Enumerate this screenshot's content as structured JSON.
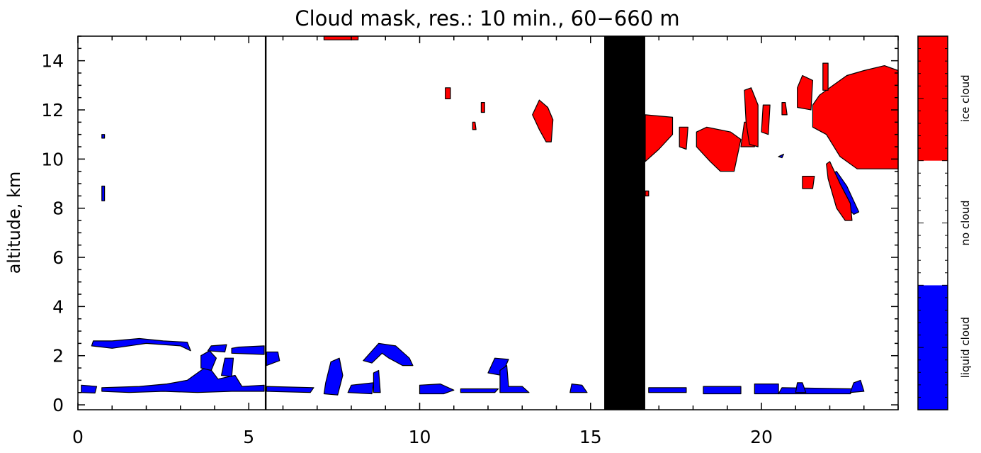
{
  "chart_data": {
    "type": "heatmap",
    "title": "Cloud mask, res.: 10 min., 60−660 m",
    "xlabel": "",
    "ylabel": "altitude, km",
    "xlim": [
      0,
      24
    ],
    "ylim": [
      -0.2,
      15
    ],
    "x_ticks": [
      0,
      5,
      10,
      15,
      20
    ],
    "y_ticks": [
      0,
      2,
      4,
      6,
      8,
      10,
      12,
      14
    ],
    "grid": false,
    "colors": {
      "liquid": "#0000ff",
      "ice": "#ff0000",
      "none": "#ffffff",
      "nodata": "#000000"
    },
    "colorbar": {
      "categories": [
        {
          "label": "liquid cloud",
          "color": "#0000ff"
        },
        {
          "label": "no cloud",
          "color": "#ffffff"
        },
        {
          "label": "ice cloud",
          "color": "#ff0000"
        }
      ]
    },
    "no_data_intervals": [
      [
        5.47,
        5.52
      ],
      [
        15.4,
        16.6
      ]
    ],
    "regions": [
      {
        "class": "liquid",
        "points": [
          [
            0.1,
            0.5
          ],
          [
            0.5,
            0.48
          ],
          [
            0.55,
            0.75
          ],
          [
            0.1,
            0.8
          ]
        ]
      },
      {
        "class": "liquid",
        "points": [
          [
            0.4,
            2.4
          ],
          [
            1.0,
            2.3
          ],
          [
            2.0,
            2.5
          ],
          [
            3.0,
            2.4
          ],
          [
            3.3,
            2.2
          ],
          [
            3.2,
            2.55
          ],
          [
            2.5,
            2.6
          ],
          [
            1.8,
            2.7
          ],
          [
            1.0,
            2.6
          ],
          [
            0.45,
            2.6
          ]
        ]
      },
      {
        "class": "liquid",
        "points": [
          [
            0.7,
            0.55
          ],
          [
            1.5,
            0.5
          ],
          [
            2.5,
            0.55
          ],
          [
            3.5,
            0.5
          ],
          [
            4.5,
            0.55
          ],
          [
            5.45,
            0.55
          ],
          [
            5.45,
            0.8
          ],
          [
            4.8,
            0.75
          ],
          [
            4.6,
            1.2
          ],
          [
            4.1,
            1.05
          ],
          [
            3.8,
            1.6
          ],
          [
            3.5,
            1.3
          ],
          [
            3.2,
            1.0
          ],
          [
            2.6,
            0.85
          ],
          [
            1.8,
            0.75
          ],
          [
            0.7,
            0.7
          ]
        ]
      },
      {
        "class": "liquid",
        "points": [
          [
            3.6,
            1.5
          ],
          [
            3.9,
            1.4
          ],
          [
            4.05,
            1.9
          ],
          [
            3.85,
            2.2
          ],
          [
            3.6,
            2.0
          ]
        ]
      },
      {
        "class": "liquid",
        "points": [
          [
            4.2,
            1.2
          ],
          [
            4.5,
            1.15
          ],
          [
            4.55,
            1.9
          ],
          [
            4.3,
            1.9
          ]
        ]
      },
      {
        "class": "liquid",
        "points": [
          [
            4.5,
            2.1
          ],
          [
            5.45,
            2.05
          ],
          [
            5.45,
            2.4
          ],
          [
            4.7,
            2.35
          ],
          [
            4.5,
            2.3
          ]
        ]
      },
      {
        "class": "liquid",
        "points": [
          [
            3.8,
            2.2
          ],
          [
            4.3,
            2.15
          ],
          [
            4.35,
            2.45
          ],
          [
            3.9,
            2.4
          ]
        ]
      },
      {
        "class": "liquid",
        "points": [
          [
            5.52,
            1.6
          ],
          [
            5.9,
            1.8
          ],
          [
            5.85,
            2.15
          ],
          [
            5.52,
            2.15
          ]
        ]
      },
      {
        "class": "liquid",
        "points": [
          [
            5.52,
            0.55
          ],
          [
            6.8,
            0.5
          ],
          [
            6.9,
            0.7
          ],
          [
            5.52,
            0.75
          ]
        ]
      },
      {
        "class": "liquid",
        "points": [
          [
            7.2,
            0.45
          ],
          [
            7.6,
            0.4
          ],
          [
            7.75,
            1.2
          ],
          [
            7.65,
            1.9
          ],
          [
            7.4,
            1.75
          ],
          [
            7.25,
            0.9
          ]
        ]
      },
      {
        "class": "liquid",
        "points": [
          [
            7.9,
            0.5
          ],
          [
            8.6,
            0.45
          ],
          [
            8.65,
            0.9
          ],
          [
            8.0,
            0.8
          ]
        ]
      },
      {
        "class": "liquid",
        "points": [
          [
            8.35,
            1.8
          ],
          [
            8.8,
            2.5
          ],
          [
            9.3,
            2.4
          ],
          [
            9.7,
            1.9
          ],
          [
            9.8,
            1.6
          ],
          [
            9.5,
            1.6
          ],
          [
            9.1,
            1.9
          ],
          [
            8.9,
            2.1
          ],
          [
            8.6,
            1.7
          ]
        ]
      },
      {
        "class": "liquid",
        "points": [
          [
            8.65,
            0.5
          ],
          [
            8.85,
            0.5
          ],
          [
            8.8,
            1.4
          ],
          [
            8.65,
            1.3
          ]
        ]
      },
      {
        "class": "liquid",
        "points": [
          [
            10.0,
            0.45
          ],
          [
            10.7,
            0.45
          ],
          [
            11.0,
            0.6
          ],
          [
            10.6,
            0.85
          ],
          [
            10.0,
            0.8
          ]
        ]
      },
      {
        "class": "liquid",
        "points": [
          [
            11.2,
            0.5
          ],
          [
            12.2,
            0.5
          ],
          [
            12.3,
            0.65
          ],
          [
            11.2,
            0.65
          ]
        ]
      },
      {
        "class": "liquid",
        "points": [
          [
            12.0,
            1.3
          ],
          [
            12.4,
            1.2
          ],
          [
            12.6,
            1.85
          ],
          [
            12.2,
            1.9
          ]
        ]
      },
      {
        "class": "liquid",
        "points": [
          [
            12.35,
            0.5
          ],
          [
            13.2,
            0.5
          ],
          [
            13.0,
            0.75
          ],
          [
            12.6,
            0.75
          ],
          [
            12.55,
            1.6
          ],
          [
            12.35,
            1.4
          ]
        ]
      },
      {
        "class": "liquid",
        "points": [
          [
            14.4,
            0.5
          ],
          [
            14.9,
            0.5
          ],
          [
            14.75,
            0.8
          ],
          [
            14.45,
            0.85
          ]
        ]
      },
      {
        "class": "liquid",
        "points": [
          [
            16.7,
            0.5
          ],
          [
            17.8,
            0.5
          ],
          [
            17.8,
            0.7
          ],
          [
            16.7,
            0.7
          ]
        ]
      },
      {
        "class": "liquid",
        "points": [
          [
            18.3,
            0.45
          ],
          [
            19.4,
            0.45
          ],
          [
            19.4,
            0.75
          ],
          [
            18.3,
            0.75
          ]
        ]
      },
      {
        "class": "liquid",
        "points": [
          [
            19.8,
            0.45
          ],
          [
            20.5,
            0.45
          ],
          [
            20.5,
            0.85
          ],
          [
            19.8,
            0.85
          ]
        ]
      },
      {
        "class": "liquid",
        "points": [
          [
            20.5,
            0.45
          ],
          [
            22.6,
            0.45
          ],
          [
            22.7,
            0.65
          ],
          [
            20.6,
            0.7
          ]
        ]
      },
      {
        "class": "liquid",
        "points": [
          [
            21.0,
            0.5
          ],
          [
            21.3,
            0.5
          ],
          [
            21.2,
            0.9
          ],
          [
            21.05,
            0.9
          ]
        ]
      },
      {
        "class": "liquid",
        "points": [
          [
            22.6,
            0.5
          ],
          [
            23.0,
            0.55
          ],
          [
            22.9,
            1.0
          ],
          [
            22.7,
            0.9
          ]
        ]
      },
      {
        "class": "liquid",
        "points": [
          [
            22.05,
            9.4
          ],
          [
            22.2,
            9.5
          ],
          [
            22.5,
            8.9
          ],
          [
            22.85,
            7.85
          ],
          [
            22.7,
            7.75
          ],
          [
            22.4,
            8.2
          ]
        ]
      },
      {
        "class": "liquid",
        "points": [
          [
            20.5,
            10.1
          ],
          [
            20.65,
            10.2
          ],
          [
            20.6,
            10.05
          ]
        ]
      },
      {
        "class": "liquid",
        "points": [
          [
            0.7,
            8.3
          ],
          [
            0.78,
            8.3
          ],
          [
            0.78,
            8.9
          ],
          [
            0.7,
            8.9
          ]
        ]
      },
      {
        "class": "liquid",
        "points": [
          [
            0.7,
            10.85
          ],
          [
            0.78,
            10.85
          ],
          [
            0.78,
            11.0
          ],
          [
            0.7,
            11.0
          ]
        ]
      },
      {
        "class": "ice",
        "points": [
          [
            7.2,
            14.85
          ],
          [
            8.2,
            14.85
          ],
          [
            8.2,
            15.0
          ],
          [
            7.2,
            15.0
          ]
        ]
      },
      {
        "class": "ice",
        "points": [
          [
            10.75,
            12.45
          ],
          [
            10.9,
            12.45
          ],
          [
            10.9,
            12.9
          ],
          [
            10.75,
            12.9
          ]
        ]
      },
      {
        "class": "ice",
        "points": [
          [
            11.8,
            11.9
          ],
          [
            11.9,
            11.9
          ],
          [
            11.9,
            12.3
          ],
          [
            11.8,
            12.3
          ]
        ]
      },
      {
        "class": "ice",
        "points": [
          [
            11.55,
            11.2
          ],
          [
            11.65,
            11.2
          ],
          [
            11.62,
            11.5
          ],
          [
            11.55,
            11.5
          ]
        ]
      },
      {
        "class": "ice",
        "points": [
          [
            13.3,
            11.8
          ],
          [
            13.5,
            12.4
          ],
          [
            13.75,
            12.1
          ],
          [
            13.9,
            11.6
          ],
          [
            13.85,
            10.7
          ],
          [
            13.7,
            10.7
          ],
          [
            13.5,
            11.2
          ]
        ]
      },
      {
        "class": "ice",
        "points": [
          [
            16.6,
            9.9
          ],
          [
            17.0,
            10.4
          ],
          [
            17.4,
            11.0
          ],
          [
            17.4,
            11.7
          ],
          [
            16.6,
            11.8
          ]
        ]
      },
      {
        "class": "ice",
        "points": [
          [
            17.6,
            10.5
          ],
          [
            17.8,
            10.4
          ],
          [
            17.85,
            11.3
          ],
          [
            17.6,
            11.3
          ]
        ]
      },
      {
        "class": "ice",
        "points": [
          [
            18.1,
            10.5
          ],
          [
            18.5,
            9.9
          ],
          [
            18.8,
            9.5
          ],
          [
            19.2,
            9.5
          ],
          [
            19.4,
            10.8
          ],
          [
            19.1,
            11.1
          ],
          [
            18.4,
            11.3
          ],
          [
            18.1,
            11.1
          ]
        ]
      },
      {
        "class": "ice",
        "points": [
          [
            19.4,
            10.5
          ],
          [
            19.8,
            10.5
          ],
          [
            19.8,
            11.5
          ],
          [
            19.5,
            11.5
          ]
        ]
      },
      {
        "class": "ice",
        "points": [
          [
            19.5,
            12.8
          ],
          [
            19.7,
            12.9
          ],
          [
            19.9,
            12.2
          ],
          [
            19.9,
            10.5
          ],
          [
            19.65,
            10.6
          ],
          [
            19.55,
            11.5
          ]
        ]
      },
      {
        "class": "ice",
        "points": [
          [
            20.0,
            11.1
          ],
          [
            20.2,
            11.0
          ],
          [
            20.25,
            12.2
          ],
          [
            20.05,
            12.2
          ]
        ]
      },
      {
        "class": "ice",
        "points": [
          [
            20.6,
            11.8
          ],
          [
            20.75,
            11.8
          ],
          [
            20.7,
            12.3
          ],
          [
            20.6,
            12.3
          ]
        ]
      },
      {
        "class": "ice",
        "points": [
          [
            21.05,
            12.1
          ],
          [
            21.45,
            12.0
          ],
          [
            21.5,
            13.2
          ],
          [
            21.2,
            13.4
          ],
          [
            21.05,
            12.9
          ]
        ]
      },
      {
        "class": "ice",
        "points": [
          [
            21.5,
            11.3
          ],
          [
            21.9,
            11.0
          ],
          [
            22.3,
            10.1
          ],
          [
            22.8,
            9.6
          ],
          [
            23.2,
            9.6
          ],
          [
            24.0,
            9.6
          ],
          [
            24.0,
            13.6
          ],
          [
            23.6,
            13.8
          ],
          [
            23.0,
            13.6
          ],
          [
            22.5,
            13.4
          ],
          [
            22.1,
            13.0
          ],
          [
            21.7,
            12.6
          ],
          [
            21.5,
            12.2
          ]
        ]
      },
      {
        "class": "ice",
        "points": [
          [
            21.8,
            12.8
          ],
          [
            21.95,
            12.8
          ],
          [
            21.95,
            13.9
          ],
          [
            21.8,
            13.9
          ]
        ]
      },
      {
        "class": "ice",
        "points": [
          [
            21.2,
            8.8
          ],
          [
            21.5,
            8.8
          ],
          [
            21.55,
            9.3
          ],
          [
            21.2,
            9.3
          ]
        ]
      },
      {
        "class": "ice",
        "points": [
          [
            21.9,
            9.8
          ],
          [
            22.0,
            9.9
          ],
          [
            22.3,
            9.0
          ],
          [
            22.6,
            8.2
          ],
          [
            22.65,
            7.5
          ],
          [
            22.45,
            7.5
          ],
          [
            22.2,
            8.0
          ],
          [
            21.95,
            9.2
          ]
        ]
      },
      {
        "class": "ice",
        "points": [
          [
            16.6,
            8.5
          ],
          [
            16.7,
            8.5
          ],
          [
            16.7,
            8.7
          ],
          [
            16.6,
            8.7
          ]
        ]
      }
    ]
  }
}
